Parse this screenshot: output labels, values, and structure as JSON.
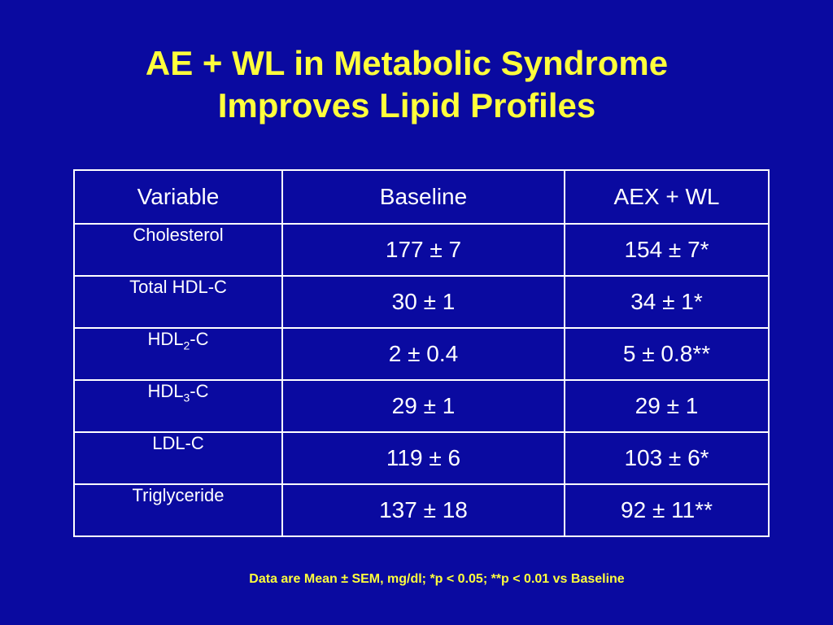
{
  "title": {
    "line1": "AE + WL in Metabolic Syndrome",
    "line2": "Improves Lipid Profiles"
  },
  "table": {
    "headers": [
      "Variable",
      "Baseline",
      "AEX + WL"
    ],
    "rows": [
      {
        "variable": "Cholesterol",
        "baseline": "177 ± 7",
        "aex_wl": "154 ± 7*"
      },
      {
        "variable": "Total HDL-C",
        "baseline": "30 ± 1",
        "aex_wl": "34 ± 1*"
      },
      {
        "variable_prefix": "HDL",
        "variable_sub": "2",
        "variable_suffix": "-C",
        "baseline": "2 ± 0.4",
        "aex_wl": "5 ± 0.8**"
      },
      {
        "variable_prefix": "HDL",
        "variable_sub": "3",
        "variable_suffix": "-C",
        "baseline": "29 ± 1",
        "aex_wl": "29 ± 1"
      },
      {
        "variable": "LDL-C",
        "baseline": "119 ± 6",
        "aex_wl": "103 ± 6*"
      },
      {
        "variable": "Triglyceride",
        "baseline": "137 ± 18",
        "aex_wl": "92 ± 11**"
      }
    ]
  },
  "footnote": "Data are Mean ± SEM, mg/dl; *p < 0.05; **p < 0.01 vs Baseline",
  "colors": {
    "background": "#0a0aa0",
    "title": "#ffff3c",
    "table_text": "#ffffff",
    "footnote": "#ffff3c"
  }
}
